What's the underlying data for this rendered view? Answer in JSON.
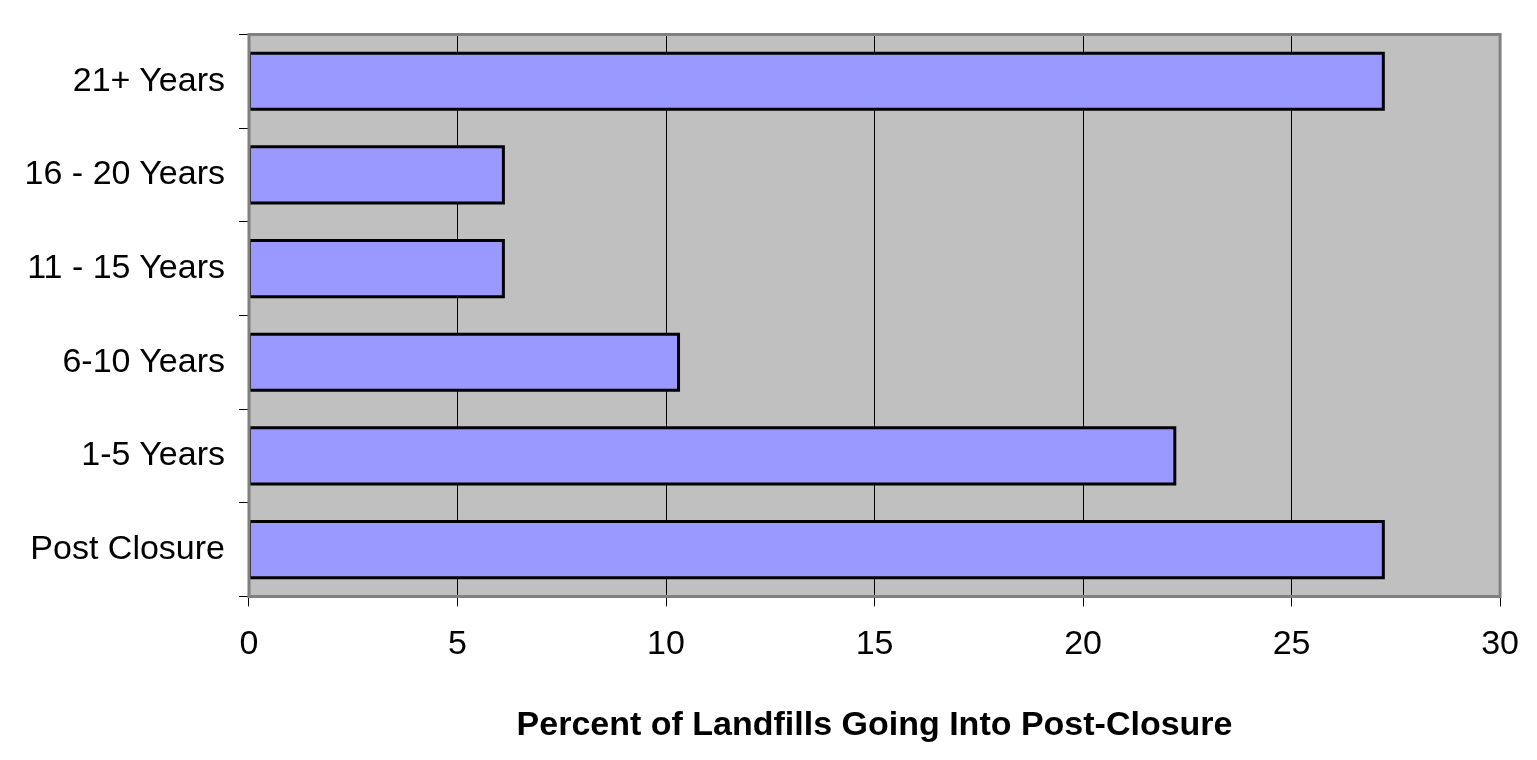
{
  "chart_data": {
    "type": "bar",
    "orientation": "horizontal",
    "xlabel": "Percent of Landfills Going Into Post-Closure",
    "categories": [
      "21+ Years",
      "16 - 20 Years",
      "11 - 15 Years",
      "6-10 Years",
      "1-5 Years",
      "Post Closure"
    ],
    "values": [
      27.2,
      6.1,
      6.1,
      10.3,
      22.2,
      27.2
    ],
    "color": "#9999ff",
    "xlim": [
      0,
      30
    ],
    "xticks": [
      0,
      5,
      10,
      15,
      20,
      25,
      30
    ],
    "grid": "x",
    "legend": false
  }
}
